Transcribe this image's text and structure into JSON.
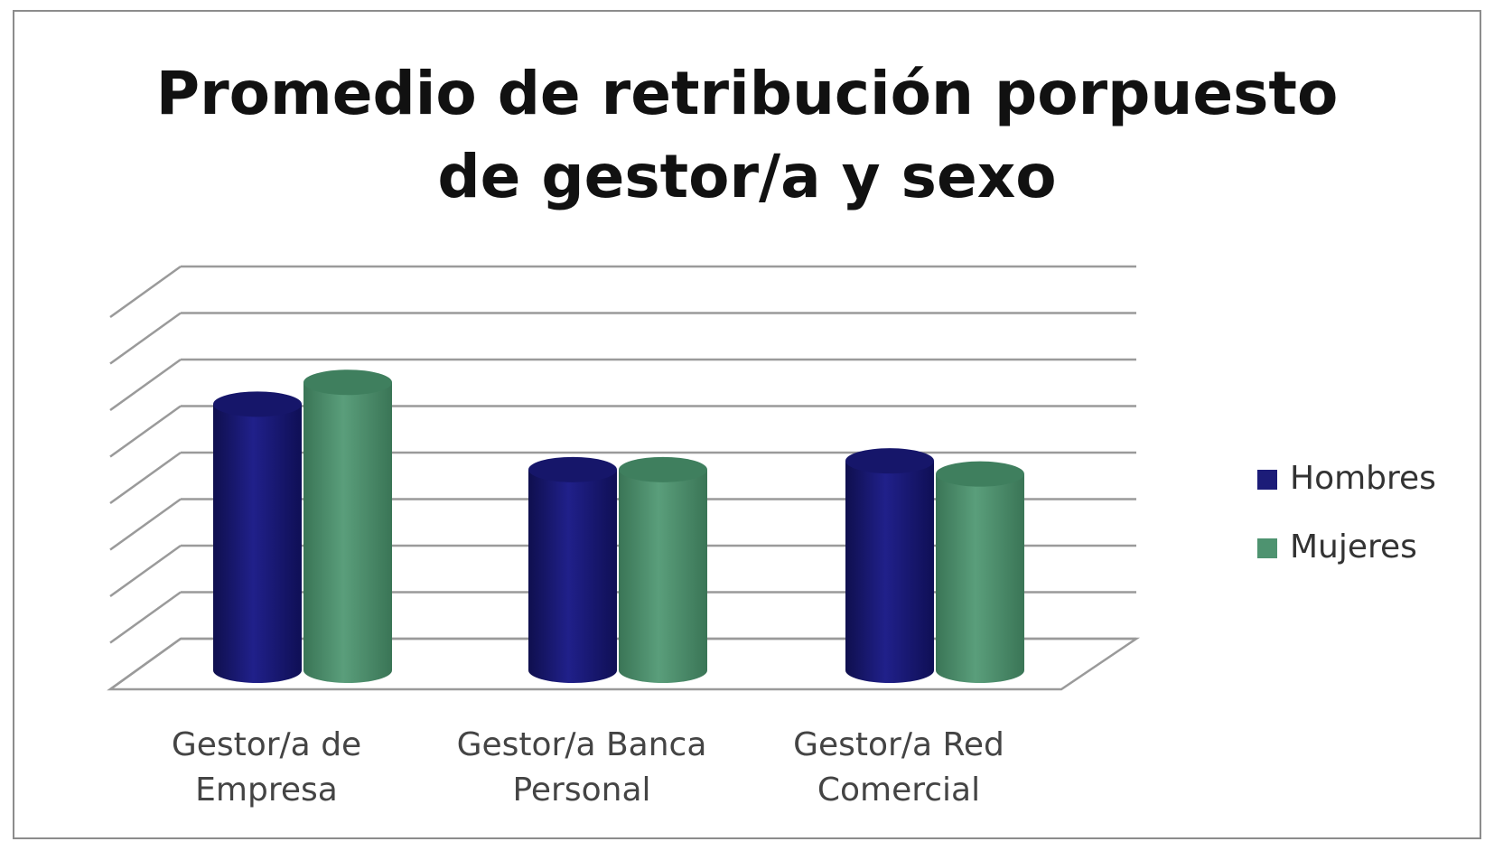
{
  "chart_data": {
    "type": "bar",
    "style": "3d-cylinder",
    "title": "Promedio de retribución porpuesto de gestor/a y sexo",
    "title_lines": [
      "Promedio de retribución porpuesto",
      "de gestor/a y sexo"
    ],
    "categories": [
      "Gestor/a de Empresa",
      "Gestor/a Banca Personal",
      "Gestor/a Red Comercial"
    ],
    "category_lines": [
      [
        "Gestor/a de",
        "Empresa"
      ],
      [
        "Gestor/a Banca",
        "Personal"
      ],
      [
        "Gestor/a Red",
        "Comercial"
      ]
    ],
    "series": [
      {
        "name": "Hombres",
        "values": [
          6.1,
          4.6,
          4.8
        ],
        "color": "#1c1c78"
      },
      {
        "name": "Mujeres",
        "values": [
          6.6,
          4.6,
          4.5
        ],
        "color": "#4e9370"
      }
    ],
    "ylim": [
      0,
      8
    ],
    "grid": true,
    "y_tick_labels_visible": false,
    "legend_position": "right"
  }
}
